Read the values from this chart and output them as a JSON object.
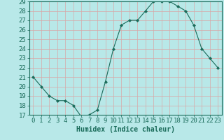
{
  "x": [
    0,
    1,
    2,
    3,
    4,
    5,
    6,
    7,
    8,
    9,
    10,
    11,
    12,
    13,
    14,
    15,
    16,
    17,
    18,
    19,
    20,
    21,
    22,
    23
  ],
  "y": [
    21.0,
    20.0,
    19.0,
    18.5,
    18.5,
    18.0,
    16.8,
    17.0,
    17.5,
    20.5,
    24.0,
    26.5,
    27.0,
    27.0,
    28.0,
    29.0,
    29.0,
    29.0,
    28.5,
    28.0,
    26.5,
    24.0,
    23.0,
    22.0
  ],
  "xlabel": "Humidex (Indice chaleur)",
  "ylim": [
    17,
    29
  ],
  "xlim": [
    -0.5,
    23.5
  ],
  "yticks": [
    17,
    18,
    19,
    20,
    21,
    22,
    23,
    24,
    25,
    26,
    27,
    28,
    29
  ],
  "xticks": [
    0,
    1,
    2,
    3,
    4,
    5,
    6,
    7,
    8,
    9,
    10,
    11,
    12,
    13,
    14,
    15,
    16,
    17,
    18,
    19,
    20,
    21,
    22,
    23
  ],
  "line_color": "#1a6b5a",
  "marker_color": "#1a6b5a",
  "bg_color": "#b8e8e8",
  "grid_color": "#d8a8a8",
  "axis_color": "#1a6b5a",
  "xlabel_fontsize": 7,
  "tick_fontsize": 6.5
}
